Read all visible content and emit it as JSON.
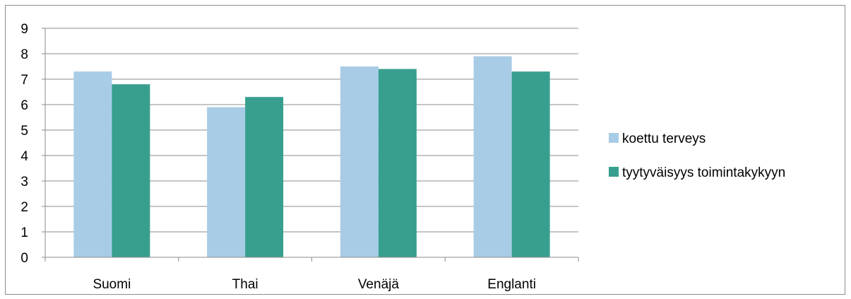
{
  "chart_data": {
    "type": "bar",
    "categories": [
      "Suomi",
      "Thai",
      "Venäjä",
      "Englanti"
    ],
    "series": [
      {
        "name": "koettu terveys",
        "values": [
          7.3,
          5.9,
          7.5,
          7.9
        ],
        "color": "#a9cce6"
      },
      {
        "name": "tyytyväisyys toimintakykyyn",
        "values": [
          6.8,
          6.3,
          7.4,
          7.3
        ],
        "color": "#389f8f"
      }
    ],
    "y_ticks": [
      "0",
      "1",
      "2",
      "3",
      "4",
      "5",
      "6",
      "7",
      "8",
      "9"
    ],
    "ylim": [
      0,
      9
    ],
    "grid": true,
    "legend_position": "right",
    "title": "",
    "xlabel": "",
    "ylabel": ""
  }
}
